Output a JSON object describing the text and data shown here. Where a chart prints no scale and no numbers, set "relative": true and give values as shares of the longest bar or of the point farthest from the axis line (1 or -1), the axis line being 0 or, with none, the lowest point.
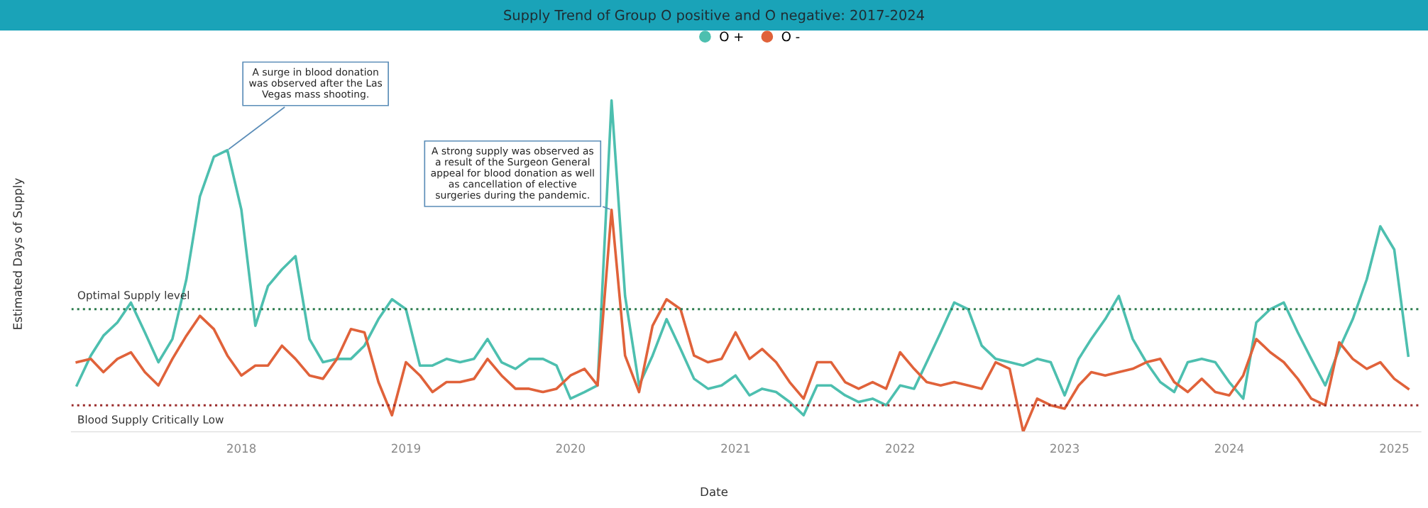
{
  "chart_data": {
    "type": "line",
    "title": "Supply Trend of Group O positive and O negative: 2017-2024",
    "xlabel": "Date",
    "ylabel": "Estimated Days of Supply",
    "relative": true,
    "legend": "top",
    "grid": false,
    "marker": "none",
    "line_style": "solid",
    "x": [
      "2017-01",
      "2017-02",
      "2017-03",
      "2017-04",
      "2017-05",
      "2017-06",
      "2017-07",
      "2017-08",
      "2017-09",
      "2017-10",
      "2017-11",
      "2017-12",
      "2018-01",
      "2018-02",
      "2018-03",
      "2018-04",
      "2018-05",
      "2018-06",
      "2018-07",
      "2018-08",
      "2018-09",
      "2018-10",
      "2018-11",
      "2018-12",
      "2019-01",
      "2019-02",
      "2019-03",
      "2019-04",
      "2019-05",
      "2019-06",
      "2019-07",
      "2019-08",
      "2019-09",
      "2019-10",
      "2019-11",
      "2019-12",
      "2020-01",
      "2020-02",
      "2020-03",
      "2020-04",
      "2020-05",
      "2020-06",
      "2020-07",
      "2020-08",
      "2020-09",
      "2020-10",
      "2020-11",
      "2020-12",
      "2021-01",
      "2021-02",
      "2021-03",
      "2021-04",
      "2021-05",
      "2021-06",
      "2021-07",
      "2021-08",
      "2021-09",
      "2021-10",
      "2021-11",
      "2021-12",
      "2022-01",
      "2022-02",
      "2022-03",
      "2022-04",
      "2022-05",
      "2022-06",
      "2022-07",
      "2022-08",
      "2022-09",
      "2022-10",
      "2022-11",
      "2022-12",
      "2023-01",
      "2023-02",
      "2023-03",
      "2023-04",
      "2023-05",
      "2023-06",
      "2023-07",
      "2023-08",
      "2023-09",
      "2023-10",
      "2023-11",
      "2023-12",
      "2024-01",
      "2024-02",
      "2024-03",
      "2024-04",
      "2024-05",
      "2024-06",
      "2024-07",
      "2024-08",
      "2024-09",
      "2024-10",
      "2024-11",
      "2024-12",
      "2025-01",
      "2025-02"
    ],
    "xlim": [
      "2016-12-20",
      "2025-03-01"
    ],
    "xticks": [
      {
        "value": "2018-01-01",
        "label": "2018"
      },
      {
        "value": "2019-01-01",
        "label": "2019"
      },
      {
        "value": "2020-01-01",
        "label": "2020"
      },
      {
        "value": "2021-01-01",
        "label": "2021"
      },
      {
        "value": "2022-01-01",
        "label": "2022"
      },
      {
        "value": "2023-01-01",
        "label": "2023"
      },
      {
        "value": "2024-01-01",
        "label": "2024"
      },
      {
        "value": "2025-01-01",
        "label": "2025"
      }
    ],
    "series": [
      {
        "name": "O +",
        "color": "#4dbfaf",
        "values": [
          0.14,
          0.23,
          0.29,
          0.33,
          0.39,
          0.3,
          0.21,
          0.28,
          0.46,
          0.71,
          0.83,
          0.85,
          0.67,
          0.32,
          0.44,
          0.49,
          0.53,
          0.28,
          0.21,
          0.22,
          0.22,
          0.26,
          0.34,
          0.4,
          0.37,
          0.2,
          0.2,
          0.22,
          0.21,
          0.22,
          0.28,
          0.21,
          0.19,
          0.22,
          0.22,
          0.2,
          0.1,
          0.12,
          0.14,
          1.0,
          0.41,
          0.14,
          0.23,
          0.34,
          0.25,
          0.16,
          0.13,
          0.14,
          0.17,
          0.11,
          0.13,
          0.12,
          0.09,
          0.05,
          0.14,
          0.14,
          0.11,
          0.09,
          0.1,
          0.08,
          0.14,
          0.13,
          0.21,
          0.3,
          0.39,
          0.37,
          0.26,
          0.22,
          0.21,
          0.2,
          0.22,
          0.21,
          0.11,
          0.22,
          0.28,
          0.34,
          0.41,
          0.28,
          0.21,
          0.15,
          0.12,
          0.21,
          0.22,
          0.21,
          0.15,
          0.1,
          0.33,
          0.37,
          0.39,
          0.3,
          0.22,
          0.14,
          0.25,
          0.34,
          0.46,
          0.62,
          0.55,
          0.23
        ]
      },
      {
        "name": "O -",
        "color": "#e0623a",
        "values": [
          0.21,
          0.22,
          0.18,
          0.22,
          0.24,
          0.18,
          0.14,
          0.22,
          0.29,
          0.35,
          0.31,
          0.23,
          0.17,
          0.2,
          0.2,
          0.26,
          0.22,
          0.17,
          0.16,
          0.22,
          0.31,
          0.3,
          0.15,
          0.05,
          0.21,
          0.17,
          0.12,
          0.15,
          0.15,
          0.16,
          0.22,
          0.17,
          0.13,
          0.13,
          0.12,
          0.13,
          0.17,
          0.19,
          0.14,
          0.67,
          0.23,
          0.12,
          0.32,
          0.4,
          0.37,
          0.23,
          0.21,
          0.22,
          0.3,
          0.22,
          0.25,
          0.21,
          0.15,
          0.1,
          0.21,
          0.21,
          0.15,
          0.13,
          0.15,
          0.13,
          0.24,
          0.19,
          0.15,
          0.14,
          0.15,
          0.14,
          0.13,
          0.21,
          0.19,
          0,
          0.1,
          0.08,
          0.07,
          0.14,
          0.18,
          0.17,
          0.18,
          0.19,
          0.21,
          0.22,
          0.15,
          0.12,
          0.16,
          0.12,
          0.11,
          0.17,
          0.28,
          0.24,
          0.21,
          0.16,
          0.1,
          0.08,
          0.27,
          0.22,
          0.19,
          0.21,
          0.16,
          0.13
        ]
      }
    ],
    "ref_lines": [
      {
        "axis": "y",
        "value": 0.37,
        "label": "Optimal Supply level",
        "color": "#2e7d4f",
        "line_style": "dotted"
      },
      {
        "axis": "y",
        "value": 0.08,
        "label": "Blood Supply Critically Low",
        "color": "#9b2c2c",
        "line_style": "dotted"
      }
    ],
    "annotations": [
      {
        "text": "A surge in blood donation\nwas observed after the Las\nVegas mass shooting.",
        "x": "2017-12",
        "y": 0.85
      },
      {
        "text": "A strong supply was observed as\na result of the Surgeon General\nappeal for blood donation as well\nas cancellation of elective\nsurgeries during the pandemic.",
        "x": "2020-04",
        "y": 0.67
      }
    ]
  }
}
